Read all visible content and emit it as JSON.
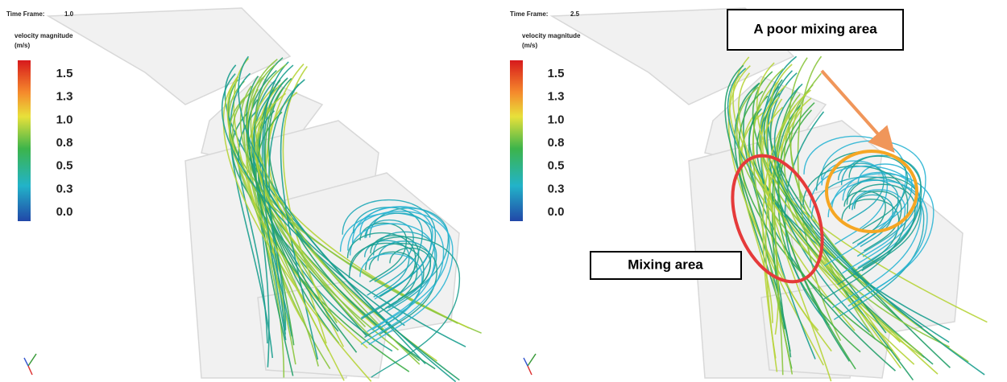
{
  "panels": [
    {
      "time_frame_label": "Time Frame:",
      "time_frame": "1.0",
      "legend_title": "velocity magnitude",
      "legend_unit": "(m/s)",
      "legend_ticks": [
        "1.5",
        "1.3",
        "1.0",
        "0.8",
        "0.5",
        "0.3",
        "0.0"
      ]
    },
    {
      "time_frame_label": "Time Frame:",
      "time_frame": "2.5",
      "legend_title": "velocity magnitude",
      "legend_unit": "(m/s)",
      "legend_ticks": [
        "1.5",
        "1.3",
        "1.0",
        "0.8",
        "0.5",
        "0.3",
        "0.0"
      ],
      "annotations": [
        "A poor mixing area",
        "Mixing area"
      ]
    }
  ]
}
